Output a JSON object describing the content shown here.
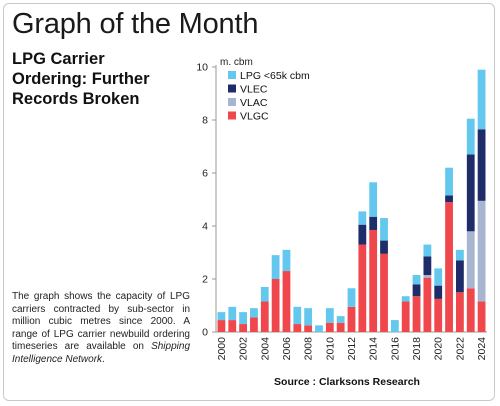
{
  "header": {
    "headline": "Graph of the Month",
    "subtitle_lines": [
      "LPG Carrier",
      "Ordering: Further",
      "Records Broken"
    ]
  },
  "description": {
    "text": "The graph shows the capacity of LPG carriers contracted by sub-sector in million cubic metres since 2000. A range of LPG carrier newbuild ordering timeseries are available on ",
    "link_text": "Shipping Intelligence Network",
    "suffix": "."
  },
  "source": "Source : Clarksons Research",
  "chart_data": {
    "type": "bar",
    "stacked": true,
    "title": "",
    "ylabel": "m. cbm",
    "xlabel": "",
    "ylim": [
      0,
      10
    ],
    "yticks": [
      0,
      2,
      4,
      6,
      8,
      10
    ],
    "grid": false,
    "legend_position": "top-left",
    "categories": [
      "2000",
      "2001",
      "2002",
      "2003",
      "2004",
      "2005",
      "2006",
      "2007",
      "2008",
      "2009",
      "2010",
      "2011",
      "2012",
      "2013",
      "2014",
      "2015",
      "2016",
      "2017",
      "2018",
      "2019",
      "2020",
      "2021",
      "2022",
      "2023",
      "2024"
    ],
    "xtick_labels": [
      "2000",
      "",
      "2002",
      "",
      "2004",
      "",
      "2006",
      "",
      "2008",
      "",
      "2010",
      "",
      "2012",
      "",
      "2014",
      "",
      "2016",
      "",
      "2018",
      "",
      "2020",
      "",
      "2022",
      "",
      "2024"
    ],
    "series": [
      {
        "name": "VLGC",
        "color": "#f0474d",
        "values": [
          0.45,
          0.45,
          0.3,
          0.55,
          1.15,
          2.0,
          2.3,
          0.3,
          0.25,
          0.0,
          0.35,
          0.35,
          0.95,
          3.3,
          3.85,
          2.95,
          0.0,
          1.15,
          1.35,
          2.05,
          1.25,
          4.9,
          1.5,
          1.65,
          1.15
        ]
      },
      {
        "name": "VLAC",
        "color": "#a7b5d1",
        "values": [
          0.0,
          0.0,
          0.0,
          0.0,
          0.0,
          0.0,
          0.0,
          0.0,
          0.0,
          0.0,
          0.0,
          0.0,
          0.0,
          0.0,
          0.0,
          0.0,
          0.0,
          0.0,
          0.0,
          0.1,
          0.0,
          0.0,
          0.0,
          2.15,
          3.8
        ]
      },
      {
        "name": "VLEC",
        "color": "#1e2d69",
        "values": [
          0.0,
          0.0,
          0.0,
          0.0,
          0.0,
          0.0,
          0.0,
          0.0,
          0.0,
          0.0,
          0.0,
          0.0,
          0.0,
          0.75,
          0.5,
          0.5,
          0.0,
          0.0,
          0.45,
          0.7,
          0.5,
          0.25,
          1.2,
          2.9,
          2.7
        ]
      },
      {
        "name": "LPG <65k cbm",
        "color": "#64c8ee",
        "values": [
          0.3,
          0.5,
          0.45,
          0.35,
          0.55,
          0.9,
          0.8,
          0.65,
          0.65,
          0.25,
          0.55,
          0.25,
          0.7,
          0.5,
          1.3,
          0.85,
          0.45,
          0.2,
          0.35,
          0.45,
          0.65,
          1.05,
          0.4,
          1.35,
          2.25
        ]
      }
    ]
  }
}
